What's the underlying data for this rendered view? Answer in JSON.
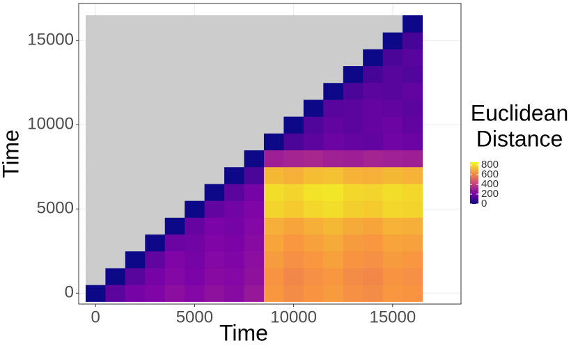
{
  "chart_data": {
    "type": "heatmap",
    "x_label": "Time",
    "y_label": "Time",
    "x": [
      0,
      1000,
      2000,
      3000,
      4000,
      5000,
      6000,
      7000,
      8000,
      9000,
      10000,
      11000,
      12000,
      13000,
      14000,
      15000,
      16000
    ],
    "y": [
      0,
      1000,
      2000,
      3000,
      4000,
      5000,
      6000,
      7000,
      8000,
      9000,
      10000,
      11000,
      12000,
      13000,
      14000,
      15000,
      16000
    ],
    "z": [
      [
        0,
        150,
        200,
        220,
        250,
        230,
        260,
        240,
        280,
        650,
        620,
        640,
        660,
        630,
        620,
        650,
        640
      ],
      [
        null,
        0,
        140,
        200,
        230,
        210,
        240,
        230,
        260,
        640,
        610,
        630,
        650,
        620,
        610,
        640,
        630
      ],
      [
        null,
        null,
        0,
        160,
        220,
        200,
        230,
        220,
        250,
        660,
        630,
        650,
        670,
        640,
        630,
        660,
        650
      ],
      [
        null,
        null,
        null,
        0,
        180,
        190,
        220,
        210,
        240,
        680,
        650,
        670,
        690,
        660,
        650,
        680,
        670
      ],
      [
        null,
        null,
        null,
        null,
        0,
        170,
        210,
        200,
        230,
        700,
        680,
        700,
        720,
        690,
        680,
        710,
        700
      ],
      [
        null,
        null,
        null,
        null,
        null,
        0,
        160,
        190,
        220,
        780,
        760,
        790,
        800,
        770,
        760,
        790,
        780
      ],
      [
        null,
        null,
        null,
        null,
        null,
        null,
        0,
        150,
        200,
        800,
        780,
        810,
        820,
        790,
        780,
        800,
        790
      ],
      [
        null,
        null,
        null,
        null,
        null,
        null,
        null,
        0,
        120,
        720,
        700,
        730,
        740,
        710,
        700,
        720,
        710
      ],
      [
        null,
        null,
        null,
        null,
        null,
        null,
        null,
        null,
        0,
        300,
        320,
        330,
        310,
        300,
        320,
        310,
        300
      ],
      [
        null,
        null,
        null,
        null,
        null,
        null,
        null,
        null,
        null,
        0,
        120,
        150,
        180,
        170,
        160,
        190,
        180
      ],
      [
        null,
        null,
        null,
        null,
        null,
        null,
        null,
        null,
        null,
        null,
        0,
        130,
        160,
        150,
        170,
        180,
        160
      ],
      [
        null,
        null,
        null,
        null,
        null,
        null,
        null,
        null,
        null,
        null,
        null,
        0,
        140,
        150,
        170,
        160,
        150
      ],
      [
        null,
        null,
        null,
        null,
        null,
        null,
        null,
        null,
        null,
        null,
        null,
        null,
        0,
        120,
        150,
        140,
        160
      ],
      [
        null,
        null,
        null,
        null,
        null,
        null,
        null,
        null,
        null,
        null,
        null,
        null,
        null,
        0,
        110,
        140,
        130
      ],
      [
        null,
        null,
        null,
        null,
        null,
        null,
        null,
        null,
        null,
        null,
        null,
        null,
        null,
        null,
        0,
        120,
        140
      ],
      [
        null,
        null,
        null,
        null,
        null,
        null,
        null,
        null,
        null,
        null,
        null,
        null,
        null,
        null,
        null,
        0,
        110
      ],
      [
        null,
        null,
        null,
        null,
        null,
        null,
        null,
        null,
        null,
        null,
        null,
        null,
        null,
        null,
        null,
        null,
        0
      ]
    ],
    "cell_size": 1000,
    "xlim": [
      -850,
      18450
    ],
    "ylim": [
      -650,
      17200
    ],
    "xticks": [
      0,
      5000,
      10000,
      15000
    ],
    "yticks": [
      0,
      5000,
      10000,
      15000
    ],
    "grid": true,
    "na_color": "#cccccc",
    "colormap": [
      "#0d0887",
      "#7e03a8",
      "#cc4778",
      "#f89540",
      "#f0f921"
    ],
    "zlim": [
      0,
      860
    ],
    "legend_title": [
      "Euclidean",
      "Distance"
    ],
    "legend_ticks": [
      0,
      200,
      400,
      600,
      800
    ]
  }
}
